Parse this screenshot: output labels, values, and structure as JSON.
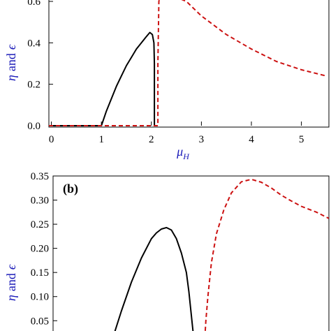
{
  "colors": {
    "solid_curve": "#000000",
    "dashed_curve": "#cc1111",
    "axis_title": "#1a1ab8"
  },
  "chart_data": [
    {
      "type": "line",
      "panel_label": "",
      "xlabel": "μ",
      "xlabel_sub": "H",
      "ylabel_eta": "η",
      "ylabel_and": "and",
      "ylabel_eps": "ϵ",
      "xlim": [
        -0.05,
        5.55
      ],
      "ylim": [
        0.0,
        0.6
      ],
      "x_ticks": [
        0,
        1,
        2,
        3,
        4,
        5
      ],
      "x_tick_labels": [
        "0",
        "1",
        "2",
        "3",
        "4",
        "5"
      ],
      "y_ticks": [
        0.0,
        0.2,
        0.4,
        0.6
      ],
      "y_tick_labels": [
        "0.0",
        "0.2",
        "0.4",
        "0.6"
      ],
      "series": [
        {
          "style": "solid",
          "x": [
            -0.05,
            1.0,
            1.0,
            1.1,
            1.2,
            1.3,
            1.4,
            1.5,
            1.6,
            1.7,
            1.8,
            1.9,
            1.97,
            2.02,
            2.05,
            2.06,
            2.06,
            2.1
          ],
          "y": [
            0.0,
            0.0,
            0.0,
            0.07,
            0.13,
            0.19,
            0.24,
            0.29,
            0.33,
            0.37,
            0.4,
            0.43,
            0.45,
            0.44,
            0.4,
            0.3,
            0.0,
            0.0
          ]
        },
        {
          "style": "dashed",
          "x": [
            -0.05,
            2.13,
            2.13,
            2.15,
            2.2,
            2.7,
            3.0,
            3.5,
            4.0,
            4.5,
            5.0,
            5.5
          ],
          "y": [
            0.0,
            0.0,
            0.3,
            0.6,
            0.65,
            0.6,
            0.53,
            0.44,
            0.37,
            0.31,
            0.27,
            0.24
          ]
        }
      ]
    },
    {
      "type": "line",
      "panel_label": "(b)",
      "ylabel_eta": "η",
      "ylabel_and": "and",
      "ylabel_eps": "ϵ",
      "xlim": [
        -0.05,
        5.55
      ],
      "ylim": [
        0.02,
        0.35
      ],
      "y_ticks": [
        0.05,
        0.1,
        0.15,
        0.2,
        0.25,
        0.3,
        0.35
      ],
      "y_tick_labels": [
        "0.05",
        "0.10",
        "0.15",
        "0.20",
        "0.25",
        "0.30",
        "0.35"
      ],
      "series": [
        {
          "style": "solid",
          "x": [
            1.2,
            1.4,
            1.6,
            1.8,
            2.0,
            2.1,
            2.2,
            2.3,
            2.4,
            2.5,
            2.6,
            2.7,
            2.75,
            2.8,
            2.85
          ],
          "y": [
            0.005,
            0.07,
            0.13,
            0.18,
            0.22,
            0.232,
            0.24,
            0.243,
            0.238,
            0.22,
            0.19,
            0.15,
            0.11,
            0.06,
            0.01
          ]
        },
        {
          "style": "dashed",
          "x": [
            3.06,
            3.09,
            3.13,
            3.2,
            3.3,
            3.45,
            3.6,
            3.8,
            4.0,
            4.2,
            4.4,
            4.6,
            4.8,
            5.0,
            5.3,
            5.55
          ],
          "y": [
            0.0,
            0.05,
            0.1,
            0.17,
            0.23,
            0.28,
            0.315,
            0.338,
            0.343,
            0.337,
            0.325,
            0.31,
            0.298,
            0.287,
            0.275,
            0.262
          ]
        }
      ]
    }
  ]
}
